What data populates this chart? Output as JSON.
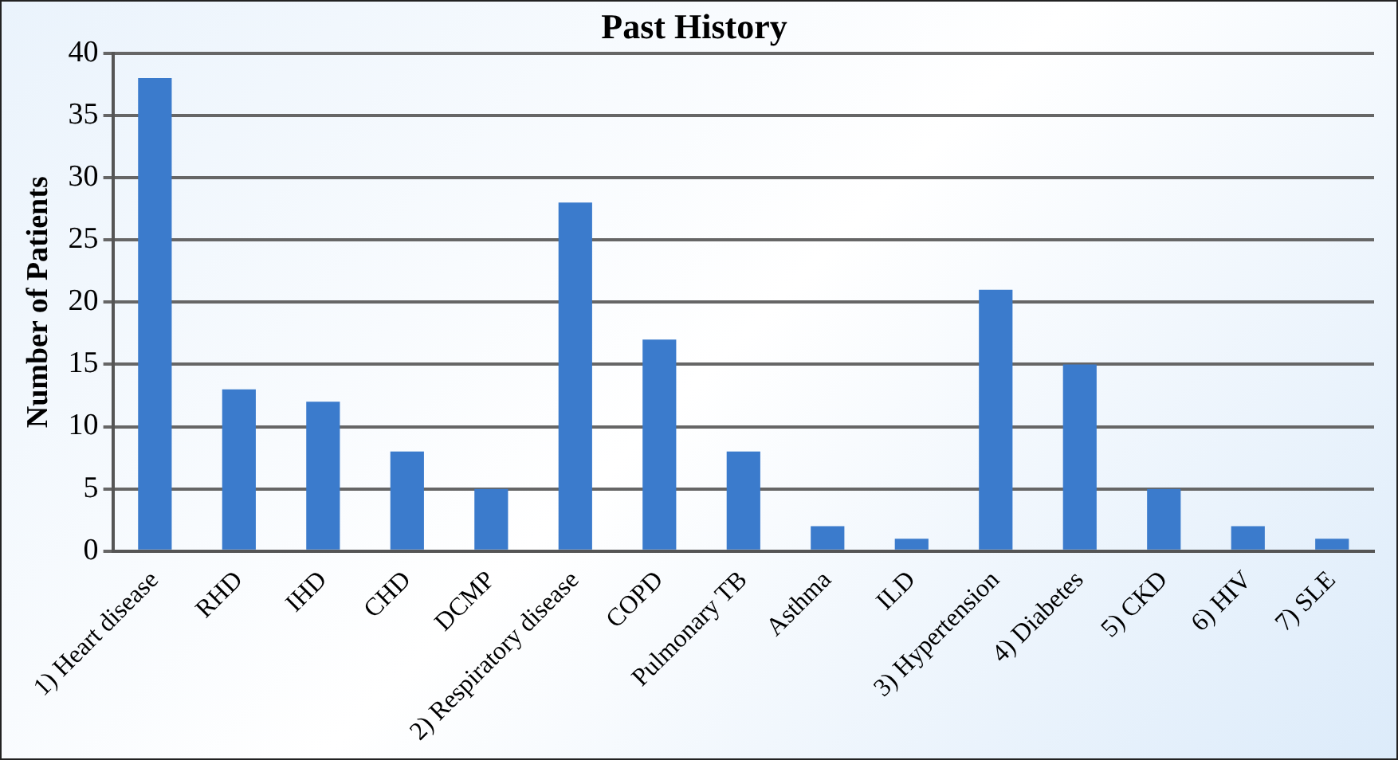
{
  "chart_data": {
    "type": "bar",
    "title": "Past History",
    "ylabel": "Number of Patients",
    "categories": [
      "1) Heart disease",
      "RHD",
      "IHD",
      "CHD",
      "DCMP",
      "2) Respiratory disease",
      "COPD",
      "Pulmonary TB",
      "Asthma",
      "ILD",
      "3) Hypertension",
      "4) Diabetes",
      "5) CKD",
      "6) HIV",
      "7) SLE"
    ],
    "values": [
      38,
      13,
      12,
      8,
      5,
      28,
      17,
      8,
      2,
      1,
      21,
      15,
      5,
      2,
      1
    ],
    "color": "#3b7bcc",
    "ylim": [
      0,
      40
    ],
    "yticks": [
      0,
      5,
      10,
      15,
      20,
      25,
      30,
      35,
      40
    ],
    "grid": "y",
    "legend": false
  }
}
